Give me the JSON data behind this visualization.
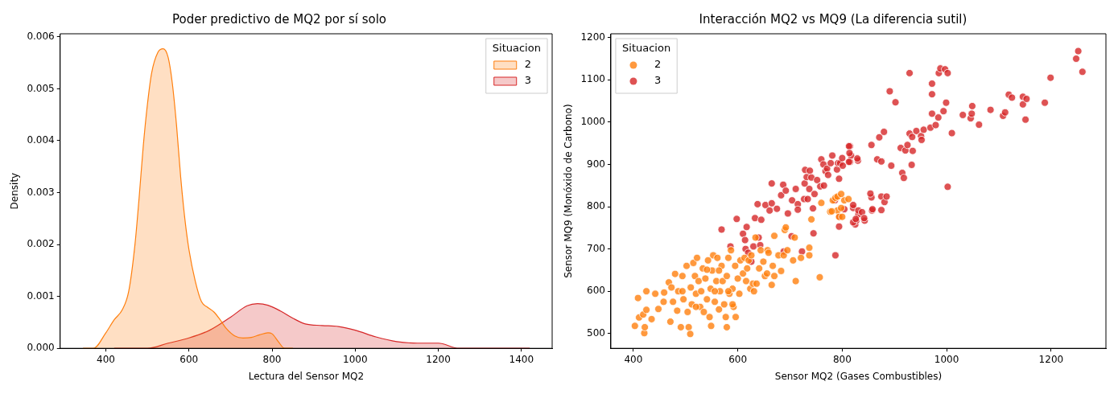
{
  "chart_data": [
    {
      "type": "area",
      "title": "Poder predictivo de MQ2 por sí solo",
      "xlabel": "Lectura del Sensor MQ2",
      "ylabel": "Density",
      "legend_title": "Situacion",
      "legend": "top right",
      "xlim": [
        290,
        1474
      ],
      "ylim": [
        0,
        0.00606
      ],
      "xticks": [
        400,
        600,
        800,
        1000,
        1200,
        1400
      ],
      "yticks": [
        {
          "value": 0,
          "label": "0.000"
        },
        {
          "value": 0.001,
          "label": "0.001"
        },
        {
          "value": 0.002,
          "label": "0.002"
        },
        {
          "value": 0.003,
          "label": "0.003"
        },
        {
          "value": 0.004,
          "label": "0.004"
        },
        {
          "value": 0.005,
          "label": "0.005"
        },
        {
          "value": 0.006,
          "label": "0.006"
        }
      ],
      "series": [
        {
          "name": "2",
          "color": "#ff7f0e",
          "x": [
            345,
            370,
            400,
            420,
            440,
            455,
            470,
            480,
            490,
            500,
            510,
            525,
            538,
            550,
            560,
            570,
            580,
            590,
            600,
            615,
            630,
            645,
            660,
            675,
            690,
            710,
            730,
            750,
            770,
            790,
            800,
            815,
            830,
            850
          ],
          "values": [
            0,
            0,
            0.0003,
            0.00055,
            0.00075,
            0.0011,
            0.002,
            0.0029,
            0.0039,
            0.0047,
            0.0053,
            0.0057,
            0.00577,
            0.0056,
            0.0051,
            0.0043,
            0.0033,
            0.0025,
            0.0019,
            0.0013,
            0.0009,
            0.00079,
            0.0007,
            0.00055,
            0.00038,
            0.00024,
            0.0002,
            0.00021,
            0.00026,
            0.0003,
            0.00028,
            0.00013,
            0,
            0
          ]
        },
        {
          "name": "3",
          "color": "#d62728",
          "x": [
            420,
            500,
            550,
            600,
            650,
            700,
            740,
            765,
            790,
            820,
            850,
            880,
            920,
            960,
            1000,
            1050,
            1100,
            1150,
            1200,
            1250,
            1300,
            1350,
            1420
          ],
          "values": [
            0,
            0,
            0.0001,
            0.0002,
            0.00035,
            0.0006,
            0.00082,
            0.00086,
            0.00083,
            0.00072,
            0.00058,
            0.00047,
            0.00044,
            0.00042,
            0.00035,
            0.00022,
            0.00013,
            0.0001,
            0.0001,
            0,
            0,
            0,
            0
          ]
        }
      ]
    },
    {
      "type": "scatter",
      "title": "Interacción MQ2 vs MQ9 (La diferencia sutil)",
      "xlabel": "Sensor MQ2 (Gases Combustibles)",
      "ylabel": "Sensor MQ9 (Monóxido de Carbono)",
      "legend_title": "Situacion",
      "legend": "top left",
      "marker": "circle",
      "xlim": [
        357,
        1305
      ],
      "ylim": [
        465,
        1209
      ],
      "xticks": [
        400,
        600,
        800,
        1000,
        1200
      ],
      "yticks": [
        500,
        600,
        700,
        800,
        900,
        1000,
        1100,
        1200
      ],
      "series": [
        {
          "name": "2",
          "color": "#ff7f0e",
          "x": [
            403,
            409,
            411,
            419,
            421,
            422,
            425,
            425,
            435,
            442,
            448,
            458,
            459,
            468,
            471,
            476,
            480,
            484,
            486,
            491,
            494,
            496,
            502,
            504,
            506,
            509,
            510,
            512,
            515,
            518,
            520,
            522,
            525,
            528,
            530,
            533,
            535,
            538,
            541,
            543,
            546,
            548,
            549,
            551,
            553,
            556,
            559,
            561,
            564,
            566,
            569,
            571,
            574,
            577,
            579,
            582,
            584,
            587,
            590,
            592,
            595,
            596,
            600,
            603,
            605,
            610,
            613,
            616,
            618,
            621,
            624,
            626,
            629,
            631,
            634,
            636,
            641,
            644,
            649,
            652,
            656,
            657,
            659,
            665,
            667,
            670,
            670,
            678,
            683,
            688,
            690,
            692,
            695,
            706,
            709,
            711,
            721,
            737,
            737,
            741,
            757,
            760,
            777,
            782,
            787,
            791,
            791,
            794,
            804,
            541,
            564,
            582,
            556,
            520,
            590,
            494,
            473,
            579,
            798,
            812,
            798,
            800,
            780
          ],
          "values": [
            518,
            584,
            538,
            545,
            501,
            515,
            600,
            556,
            534,
            594,
            558,
            575,
            597,
            621,
            528,
            575,
            641,
            554,
            600,
            515,
            636,
            581,
            660,
            551,
            515,
            499,
            609,
            569,
            667,
            636,
            594,
            679,
            624,
            563,
            600,
            654,
            551,
            630,
            581,
            673,
            539,
            606,
            518,
            649,
            685,
            575,
            624,
            679,
            557,
            600,
            660,
            624,
            569,
            539,
            636,
            679,
            594,
            697,
            606,
            563,
            660,
            539,
            630,
            594,
            673,
            642,
            679,
            624,
            654,
            673,
            606,
            685,
            618,
            600,
            727,
            618,
            654,
            697,
            670,
            636,
            642,
            697,
            691,
            615,
            660,
            636,
            731,
            685,
            648,
            685,
            745,
            751,
            697,
            673,
            727,
            624,
            679,
            703,
            685,
            770,
            633,
            809,
            788,
            815,
            821,
            824,
            791,
            776,
            815,
            651,
            649,
            600,
            600,
            563,
            569,
            600,
            609,
            515,
            830,
            818,
            797,
            776,
            789
          ]
        },
        {
          "name": "3",
          "color": "#d62728",
          "x": [
            569,
            586,
            598,
            610,
            614,
            615,
            617,
            620,
            626,
            630,
            633,
            638,
            640,
            643,
            645,
            653,
            661,
            665,
            665,
            675,
            683,
            687,
            688,
            692,
            696,
            703,
            704,
            711,
            715,
            715,
            723,
            727,
            728,
            729,
            732,
            734,
            737,
            738,
            741,
            744,
            745,
            747,
            752,
            758,
            760,
            764,
            765,
            768,
            771,
            773,
            778,
            781,
            786,
            787,
            790,
            792,
            794,
            795,
            796,
            800,
            801,
            804,
            815,
            815,
            817,
            821,
            825,
            827,
            830,
            831,
            843,
            856,
            856,
            857,
            794,
            821,
            826,
            831,
            838,
            842,
            821,
            854,
            858,
            875,
            881,
            885,
            875,
            813,
            814,
            829,
            813,
            867,
            875,
            871,
            880,
            894,
            891,
            902,
            915,
            918,
            912,
            921,
            925,
            935,
            933,
            929,
            929,
            934,
            942,
            951,
            952,
            956,
            969,
            972,
            972,
            972,
            979,
            984,
            994,
            999,
            985,
            988,
            997,
            1002,
            1010,
            1002,
            1031,
            1046,
            1048,
            1049,
            1062,
            1084,
            1108,
            1112,
            1119,
            1125,
            1146,
            1146,
            1153,
            1151,
            1188,
            1199,
            1248,
            1252,
            1260
          ],
          "values": [
            746,
            706,
            771,
            736,
            721,
            700,
            752,
            691,
            670,
            706,
            773,
            806,
            727,
            709,
            769,
            804,
            791,
            855,
            808,
            795,
            827,
            852,
            694,
            838,
            784,
            730,
            815,
            842,
            806,
            793,
            694,
            818,
            855,
            887,
            870,
            818,
            842,
            885,
            869,
            796,
            737,
            830,
            863,
            848,
            912,
            900,
            850,
            884,
            890,
            875,
            903,
            921,
            815,
            685,
            888,
            903,
            866,
            776,
            903,
            915,
            897,
            794,
            943,
            906,
            921,
            797,
            758,
            767,
            909,
            782,
            767,
            822,
            946,
            791,
            753,
            763,
            771,
            791,
            787,
            773,
            804,
            831,
            794,
            824,
            811,
            824,
            792,
            943,
            927,
            914,
            906,
            912,
            907,
            964,
            977,
            897,
            1073,
            1047,
            880,
            868,
            939,
            933,
            946,
            932,
            899,
            1116,
            973,
            965,
            979,
            967,
            958,
            982,
            987,
            1020,
            1066,
            1091,
            993,
            1011,
            1026,
            1046,
            1116,
            1127,
            1125,
            1116,
            974,
            847,
            1017,
            1009,
            1020,
            1038,
            994,
            1029,
            1015,
            1023,
            1065,
            1058,
            1060,
            1042,
            1055,
            1006,
            1046,
            1105,
            1150,
            1168,
            1119
          ]
        }
      ]
    }
  ]
}
